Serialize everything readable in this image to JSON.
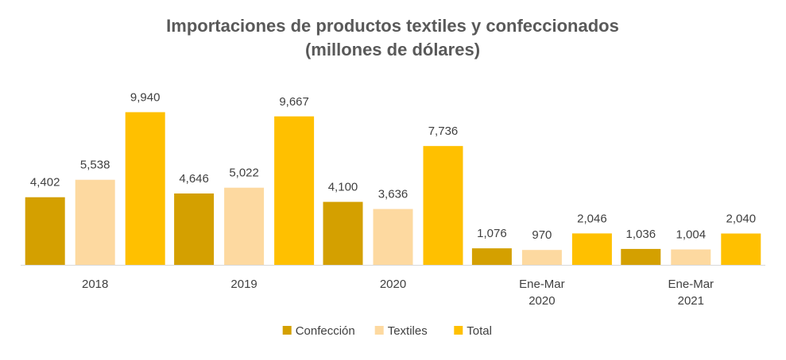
{
  "chart_data": {
    "type": "bar",
    "title_lines": [
      "Importaciones de productos textiles y confeccionados",
      "(millones de dólares)"
    ],
    "categories": [
      [
        "2018"
      ],
      [
        "2019"
      ],
      [
        "2020"
      ],
      [
        "Ene-Mar",
        "2020"
      ],
      [
        "Ene-Mar",
        "2021"
      ]
    ],
    "series": [
      {
        "name": "Confección",
        "color": "#D4A000",
        "values": [
          4402,
          4646,
          4100,
          1076,
          1036
        ],
        "labels": [
          "4,402",
          "4,646",
          "4,100",
          "1,076",
          "1,036"
        ]
      },
      {
        "name": "Textiles",
        "color": "#FDD9A0",
        "values": [
          5538,
          5022,
          3636,
          970,
          1004
        ],
        "labels": [
          "5,538",
          "5,022",
          "3,636",
          "970",
          "1,004"
        ]
      },
      {
        "name": "Total",
        "color": "#FFC000",
        "values": [
          9940,
          9667,
          7736,
          2046,
          2040
        ],
        "labels": [
          "9,940",
          "9,667",
          "7,736",
          "2,046",
          "2,040"
        ]
      }
    ],
    "legend_position": "bottom",
    "grid": false,
    "axis_color": "#D9D9D9"
  }
}
